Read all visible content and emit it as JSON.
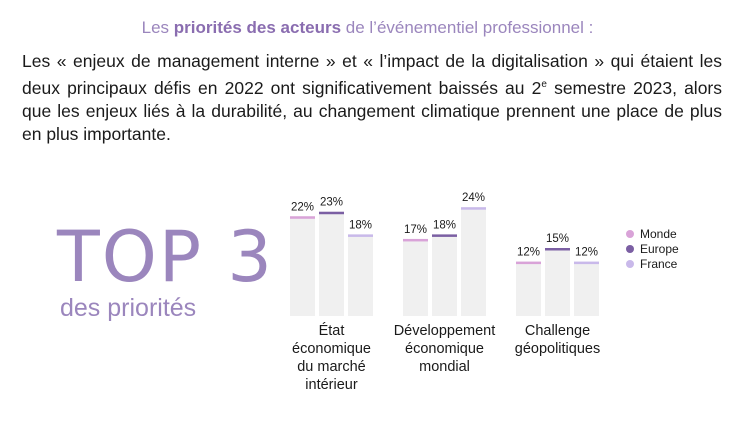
{
  "header": {
    "pre": "Les ",
    "bold": "priorités des acteurs",
    "post": " de l’événementiel professionnel :"
  },
  "intro": {
    "part1": "Les « enjeux de management interne » et « l’impact de la digitalisation » qui étaient les deux principaux défis en 2022 ont significativement baissés au 2",
    "sup": "e",
    "part2": " semestre 2023, alors que les enjeux liés à la durabilité, au changement climatique prennent une place de plus en plus importante."
  },
  "top3": {
    "title": "TOP 3",
    "subtitle": "des priorités"
  },
  "colors": {
    "monde": "#d9a3d8",
    "europe": "#7b5fa3",
    "france": "#c9b9ea",
    "bar_bg": "#f0f0f0"
  },
  "chart_data": {
    "type": "bar",
    "categories": [
      "État économique du marché intérieur",
      "Développement économique mondial",
      "Challenge géopolitiques"
    ],
    "category_lines": [
      [
        "État",
        "économique",
        "du marché",
        "intérieur"
      ],
      [
        "Développement",
        "économique",
        "mondial"
      ],
      [
        "Challenge",
        "géopolitiques"
      ]
    ],
    "series": [
      {
        "name": "Monde",
        "values": [
          22,
          17,
          12
        ]
      },
      {
        "name": "Europe",
        "values": [
          23,
          18,
          15
        ]
      },
      {
        "name": "France",
        "values": [
          18,
          24,
          12
        ]
      }
    ],
    "value_suffix": "%",
    "ylim": [
      0,
      30
    ],
    "legend": "right"
  }
}
